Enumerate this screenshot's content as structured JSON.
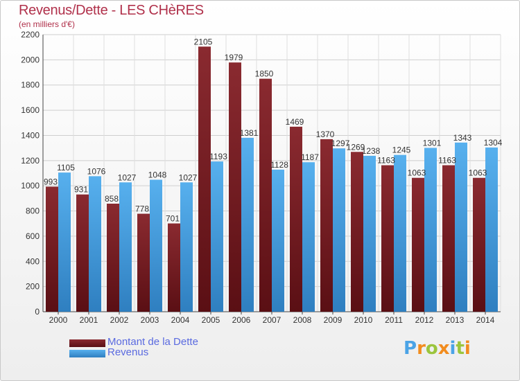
{
  "header": {
    "title": "Revenus/Dette - LES CHèRES",
    "subtitle": "(en milliers d'€)"
  },
  "legend": [
    {
      "label": "Montant de la Dette",
      "color": "#7a1f25"
    },
    {
      "label": "Revenus",
      "color": "#4aa3e6"
    }
  ],
  "logo": {
    "text": "Proxiti",
    "letters": [
      {
        "ch": "P",
        "color": "#4aa3e6"
      },
      {
        "ch": "r",
        "color": "#f28c1e"
      },
      {
        "ch": "o",
        "color": "#9bc53d"
      },
      {
        "ch": "x",
        "color": "#f28c1e"
      },
      {
        "ch": "i",
        "color": "#4aa3e6"
      },
      {
        "ch": "t",
        "color": "#9bc53d"
      },
      {
        "ch": "i",
        "color": "#f28c1e"
      }
    ]
  },
  "chart_data": {
    "type": "bar",
    "title": "Revenus/Dette - LES CHèRES",
    "subtitle": "(en milliers d'€)",
    "categories": [
      "2000",
      "2001",
      "2002",
      "2003",
      "2004",
      "2005",
      "2006",
      "2007",
      "2008",
      "2009",
      "2010",
      "2011",
      "2012",
      "2013",
      "2014"
    ],
    "series": [
      {
        "name": "Montant de la Dette",
        "color": "#7a1f25",
        "values": [
          993,
          931,
          858,
          778,
          701,
          2105,
          1979,
          1850,
          1469,
          1370,
          1269,
          1163,
          1063,
          1163,
          1063
        ],
        "labels": [
          "993",
          "931",
          "858",
          "778",
          "701",
          "2105",
          "1979",
          "1850",
          "1469",
          "1370",
          "1269",
          "1163",
          "1063",
          "1163",
          "1063"
        ]
      },
      {
        "name": "Revenus",
        "color": "#4aa3e6",
        "values": [
          1105,
          1076,
          1027,
          1048,
          1027,
          1193,
          1381,
          1128,
          1187,
          1297,
          1238,
          1245,
          1301,
          1343,
          1304
        ],
        "labels": [
          "1105",
          "1076",
          "1027",
          "1048",
          "1027",
          "1193",
          "1381",
          "1128",
          "1187",
          "1297",
          "1238",
          "1245",
          "1301",
          "1343",
          "1304"
        ]
      }
    ],
    "ylim": [
      0,
      2200
    ],
    "yticks": [
      0,
      200,
      400,
      600,
      800,
      1000,
      1200,
      1400,
      1600,
      1800,
      2000,
      2200
    ],
    "grid": true,
    "legend_position": "bottom-left"
  }
}
